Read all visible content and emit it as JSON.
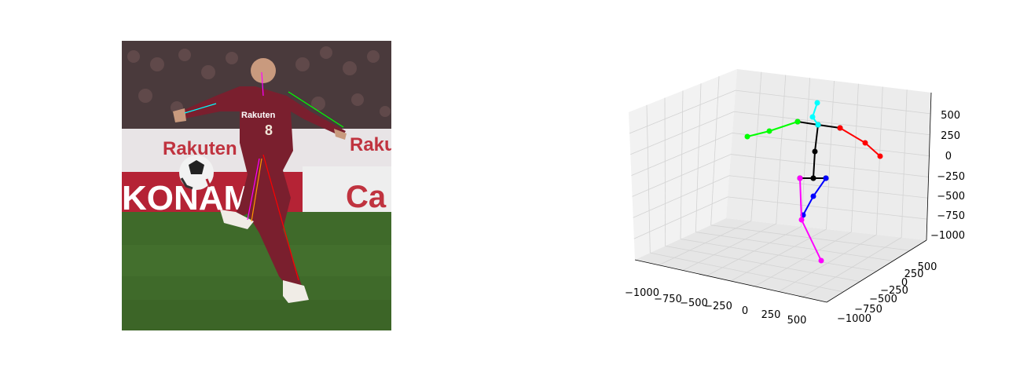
{
  "photo": {
    "alt": "Soccer player in maroon kit kicking a ball, with 2D skeleton overlay",
    "jersey_number": "8",
    "sponsor": "Rakuten",
    "ad_board_left": "Rakuten",
    "ad_board_right": "Rakuten",
    "ad_board_lower_left": "KONAM",
    "ad_board_lower_right": "Ca"
  },
  "chart_data": {
    "type": "scatter3d",
    "title": "",
    "x_ticks": [
      "−1000",
      "−750",
      "−500",
      "−250",
      "0",
      "250",
      "500"
    ],
    "y_ticks": [
      "−1000",
      "−750",
      "−500",
      "−250",
      "0",
      "250",
      "500"
    ],
    "z_ticks": [
      "500",
      "250",
      "0",
      "−250",
      "−500",
      "−750",
      "−1000"
    ],
    "grid": true,
    "colors": {
      "spine": "#000000",
      "head": "#00ffff",
      "left_arm": "#00ff00",
      "right_arm": "#ff0000",
      "left_leg": "#0000ff",
      "right_leg": "#ff00ff"
    }
  }
}
